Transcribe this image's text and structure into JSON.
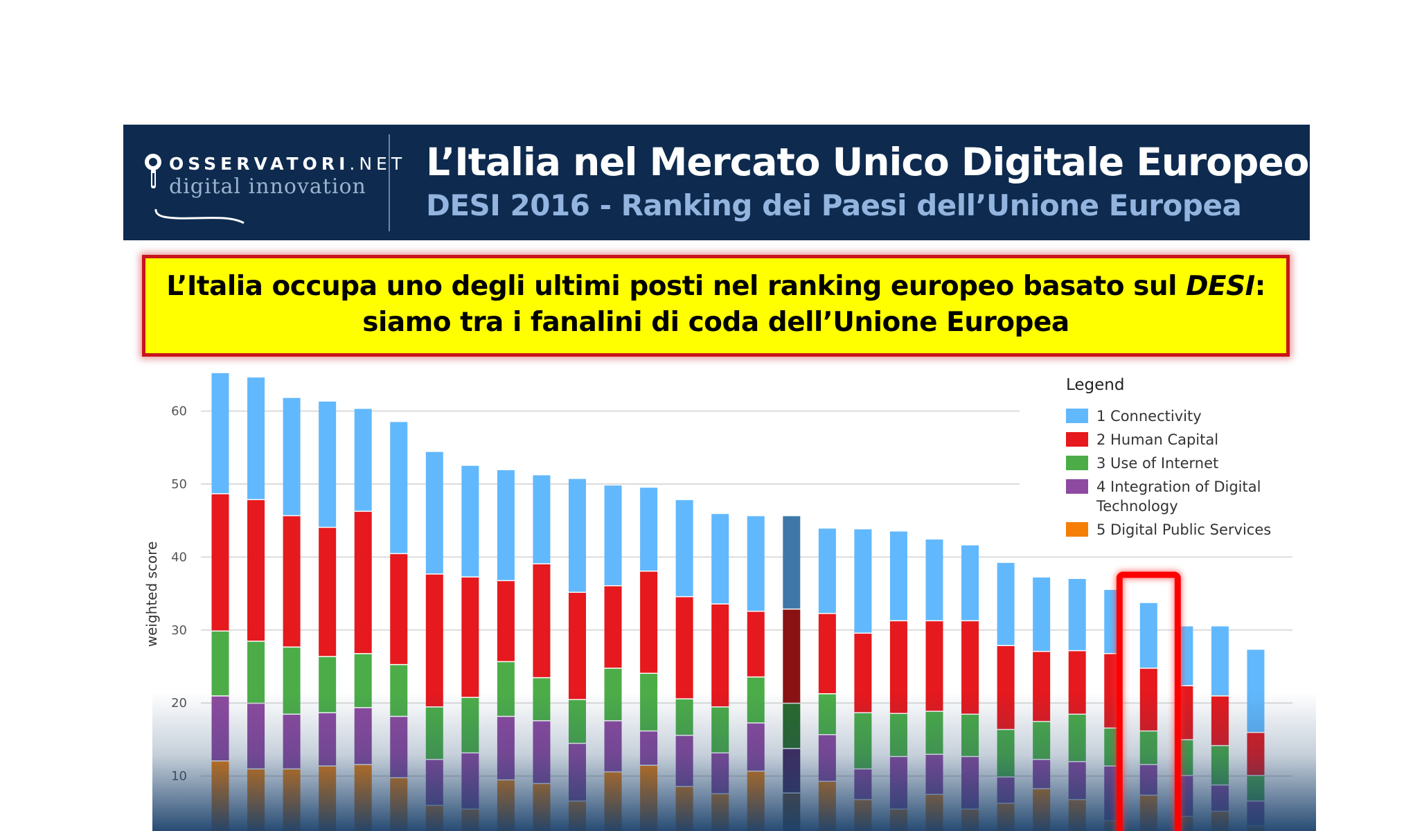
{
  "header": {
    "logo_name": "OSSERVATORI",
    "logo_suffix": ".NET",
    "logo_tagline": "digital innovation",
    "title": "L’Italia nel Mercato Unico Digitale Europeo",
    "subtitle": "DESI 2016 - Ranking dei Paesi dell’Unione  Europea",
    "background": "#0e2b4f"
  },
  "callout": {
    "line1_before": "L’Italia occupa uno degli ultimi posti nel ranking europeo basato sul ",
    "line1_italic": "DESI",
    "line1_after": ":",
    "line2": "siamo tra i fanalini di coda dell’Unione Europea",
    "background": "#ffff00",
    "border": "#c8141c"
  },
  "chart_data": {
    "type": "bar",
    "stacked": true,
    "ylabel": "weighted score",
    "yticks": [
      10,
      20,
      30,
      40,
      50,
      60
    ],
    "ylim": [
      0,
      66
    ],
    "grid": true,
    "legend": {
      "title": "Legend",
      "placement": "top-right"
    },
    "highlight_index": 16,
    "boxed_index": 26,
    "series": [
      {
        "name": "5 Digital Public Services",
        "color": "#f57f06",
        "dark": "#6b4a2b",
        "values": [
          12.0,
          10.9,
          10.9,
          11.3,
          11.5,
          9.7,
          5.9,
          5.4,
          9.4,
          8.9,
          6.5,
          10.5,
          11.4,
          8.5,
          7.5,
          10.6,
          7.6,
          9.2,
          6.7,
          5.4,
          7.4,
          5.4,
          6.2,
          8.2,
          6.7,
          3.8,
          7.3,
          4.4,
          5.1,
          3.1
        ]
      },
      {
        "name": "4 Integration of Digital Technology",
        "color": "#8e4aa0",
        "dark": "#45295f",
        "values": [
          8.9,
          9.0,
          7.5,
          7.3,
          7.8,
          8.4,
          6.3,
          7.7,
          8.7,
          8.6,
          7.9,
          7.0,
          4.7,
          7.0,
          5.6,
          6.6,
          6.1,
          6.4,
          4.2,
          7.2,
          5.5,
          7.2,
          3.6,
          4.0,
          5.2,
          7.5,
          4.2,
          5.6,
          3.6,
          3.4
        ]
      },
      {
        "name": "3 Use of Internet",
        "color": "#4cad48",
        "dark": "#2a6a2c",
        "values": [
          8.9,
          8.5,
          9.2,
          7.7,
          7.4,
          7.1,
          7.2,
          7.6,
          7.5,
          5.9,
          6.0,
          7.2,
          7.9,
          5.0,
          6.3,
          6.3,
          6.2,
          5.6,
          7.7,
          5.9,
          5.9,
          5.8,
          6.5,
          5.2,
          6.5,
          5.2,
          4.6,
          4.9,
          5.4,
          3.5
        ]
      },
      {
        "name": "2 Human Capital",
        "color": "#e5191e",
        "dark": "#8b1212",
        "values": [
          18.8,
          19.4,
          18.0,
          17.7,
          19.5,
          15.2,
          18.2,
          16.5,
          11.1,
          15.6,
          14.7,
          11.3,
          14.0,
          14.0,
          14.1,
          9.0,
          12.9,
          11.0,
          10.9,
          12.7,
          12.4,
          12.8,
          11.5,
          9.6,
          8.7,
          10.2,
          8.6,
          7.4,
          6.8,
          5.9
        ]
      },
      {
        "name": "1 Connectivity",
        "color": "#62b8fc",
        "dark": "#3f78a8",
        "values": [
          16.6,
          16.8,
          16.2,
          17.3,
          14.1,
          18.1,
          16.8,
          15.3,
          15.2,
          12.2,
          15.6,
          13.8,
          11.5,
          13.3,
          12.4,
          13.1,
          12.8,
          11.7,
          14.3,
          12.3,
          11.2,
          10.4,
          11.4,
          10.2,
          9.9,
          8.8,
          9.0,
          8.2,
          9.6,
          11.4
        ]
      }
    ]
  }
}
